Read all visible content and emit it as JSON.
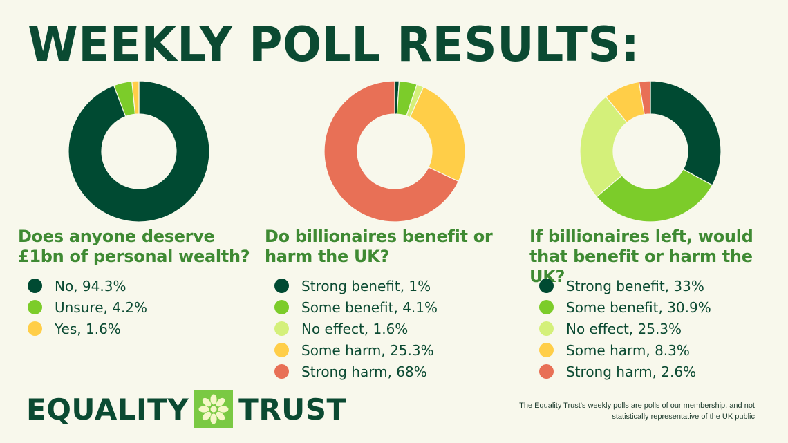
{
  "header": {
    "title": "WEEKLY POLL RESULTS:"
  },
  "colors": {
    "dark_green": "#004a32",
    "green": "#7ccc2a",
    "light_green": "#d4f07a",
    "yellow": "#ffce48",
    "orange": "#e87056"
  },
  "chart_data": [
    {
      "type": "pie",
      "title": "Does anyone deserve £1bn of personal wealth?",
      "categories": [
        "No",
        "Unsure",
        "Yes"
      ],
      "values": [
        94.3,
        4.2,
        1.6
      ],
      "legend_labels": [
        "No, 94.3%",
        "Unsure, 4.2%",
        "Yes, 1.6%"
      ],
      "colors": [
        "#004a32",
        "#7ccc2a",
        "#ffce48"
      ],
      "legend_position": "bottom"
    },
    {
      "type": "pie",
      "title": "Do billionaires benefit or harm the UK?",
      "categories": [
        "Strong benefit",
        "Some benefit",
        "No effect",
        "Some harm",
        "Strong harm"
      ],
      "values": [
        1,
        4.1,
        1.6,
        25.3,
        68
      ],
      "legend_labels": [
        "Strong benefit, 1%",
        "Some benefit, 4.1%",
        "No effect, 1.6%",
        "Some harm, 25.3%",
        "Strong harm, 68%"
      ],
      "colors": [
        "#004a32",
        "#7ccc2a",
        "#d4f07a",
        "#ffce48",
        "#e87056"
      ],
      "legend_position": "bottom"
    },
    {
      "type": "pie",
      "title": "If billionaires left, would that benefit or harm the UK?",
      "categories": [
        "Strong benefit",
        "Some benefit",
        "No effect",
        "Some harm",
        "Strong harm"
      ],
      "values": [
        33,
        30.9,
        25.3,
        8.3,
        2.6
      ],
      "legend_labels": [
        "Strong benefit, 33%",
        "Some benefit, 30.9%",
        "No effect, 25.3%",
        "Some harm, 8.3%",
        "Strong harm, 2.6%"
      ],
      "colors": [
        "#004a32",
        "#7ccc2a",
        "#d4f07a",
        "#ffce48",
        "#e87056"
      ],
      "legend_position": "bottom"
    }
  ],
  "footer": {
    "logo_left": "EQUALITY",
    "logo_right": "TRUST",
    "logo_icon": "asterisk-flower-icon",
    "note_line1": "The Equality Trust's weekly polls are polls of our membership, and not",
    "note_line2": "statistically representative of the UK public"
  }
}
